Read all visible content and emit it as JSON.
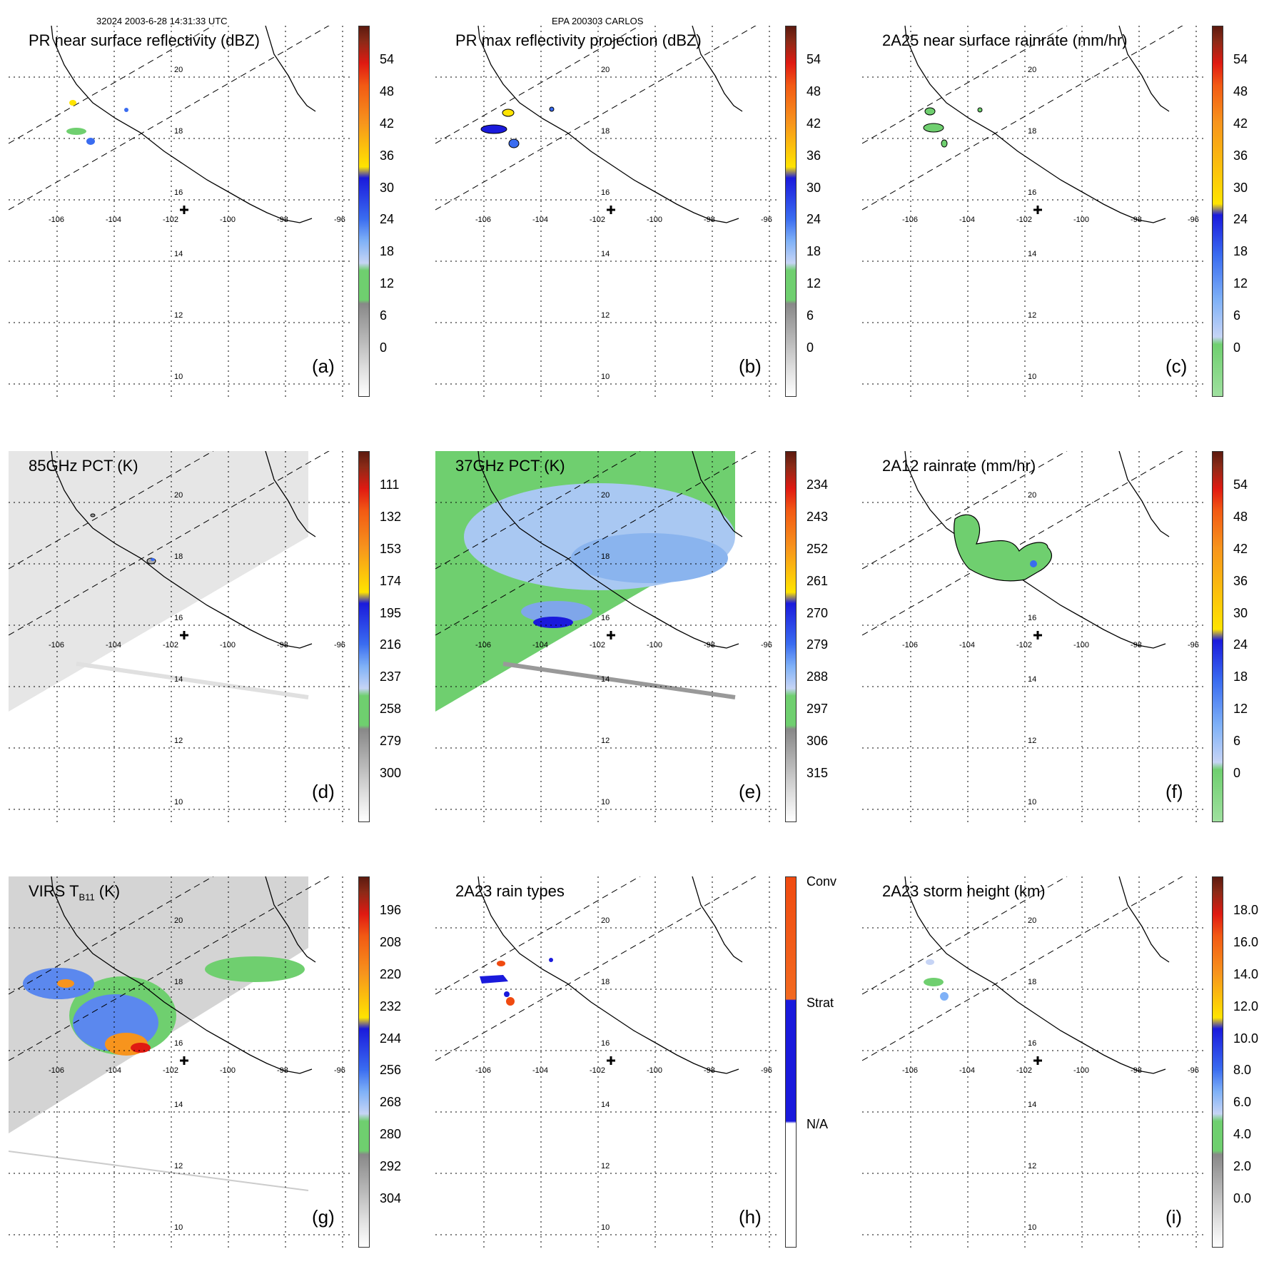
{
  "header": {
    "left": "32024 2003-6-28 14:31:33 UTC",
    "center": "EPA 200303 CARLOS"
  },
  "lon_labels": [
    "-106",
    "-104",
    "-102",
    "-100",
    "-98",
    "-96"
  ],
  "lat_labels": [
    "20",
    "18",
    "16",
    "14",
    "12",
    "10"
  ],
  "colors": {
    "brown_dark": "#5c1a0f",
    "brown": "#8b2a17",
    "red": "#e01a12",
    "orange_red": "#f25a14",
    "orange": "#f7941d",
    "yellow": "#ffe400",
    "blue_dark": "#1a1adc",
    "blue": "#3a6cf0",
    "blue_light": "#7fb1f7",
    "blue_pale": "#c6d4f5",
    "green": "#6fcf6f",
    "gray_dark": "#888888",
    "gray": "#b4b4b4",
    "gray_light": "#dcdcdc",
    "white": "#ffffff"
  },
  "panels": [
    {
      "id": "a",
      "title": "PR near surface reflectivity (dBZ)",
      "label": "(a)",
      "ticks": [
        "54",
        "48",
        "42",
        "36",
        "30",
        "24",
        "18",
        "12",
        "6",
        "0"
      ]
    },
    {
      "id": "b",
      "title": "PR max reflectivity projection (dBZ)",
      "label": "(b)",
      "ticks": [
        "54",
        "48",
        "42",
        "36",
        "30",
        "24",
        "18",
        "12",
        "6",
        "0"
      ]
    },
    {
      "id": "c",
      "title": "2A25 near surface rainrate (mm/hr)",
      "label": "(c)",
      "ticks": [
        "54",
        "48",
        "42",
        "36",
        "30",
        "24",
        "18",
        "12",
        "6",
        "0"
      ]
    },
    {
      "id": "d",
      "title": "85GHz PCT (K)",
      "label": "(d)",
      "ticks": [
        "111",
        "132",
        "153",
        "174",
        "195",
        "216",
        "237",
        "258",
        "279",
        "300"
      ]
    },
    {
      "id": "e",
      "title": "37GHz PCT (K)",
      "label": "(e)",
      "ticks": [
        "234",
        "243",
        "252",
        "261",
        "270",
        "279",
        "288",
        "297",
        "306",
        "315"
      ]
    },
    {
      "id": "f",
      "title": "2A12 rainrate (mm/hr)",
      "label": "(f)",
      "ticks": [
        "54",
        "48",
        "42",
        "36",
        "30",
        "24",
        "18",
        "12",
        "6",
        "0"
      ]
    },
    {
      "id": "g",
      "title": "VIRS T",
      "title_sub": "B11",
      "title_tail": " (K)",
      "label": "(g)",
      "ticks": [
        "196",
        "208",
        "220",
        "232",
        "244",
        "256",
        "268",
        "280",
        "292",
        "304"
      ]
    },
    {
      "id": "h",
      "title": "2A23 rain types",
      "label": "(h)",
      "ticks": [
        "Conv",
        "Strat",
        "N/A"
      ]
    },
    {
      "id": "i",
      "title": "2A23 storm height (km)",
      "label": "(i)",
      "ticks": [
        "18.0",
        "16.0",
        "14.0",
        "12.0",
        "10.0",
        "8.0",
        "6.0",
        "4.0",
        "2.0",
        "0.0"
      ]
    }
  ]
}
